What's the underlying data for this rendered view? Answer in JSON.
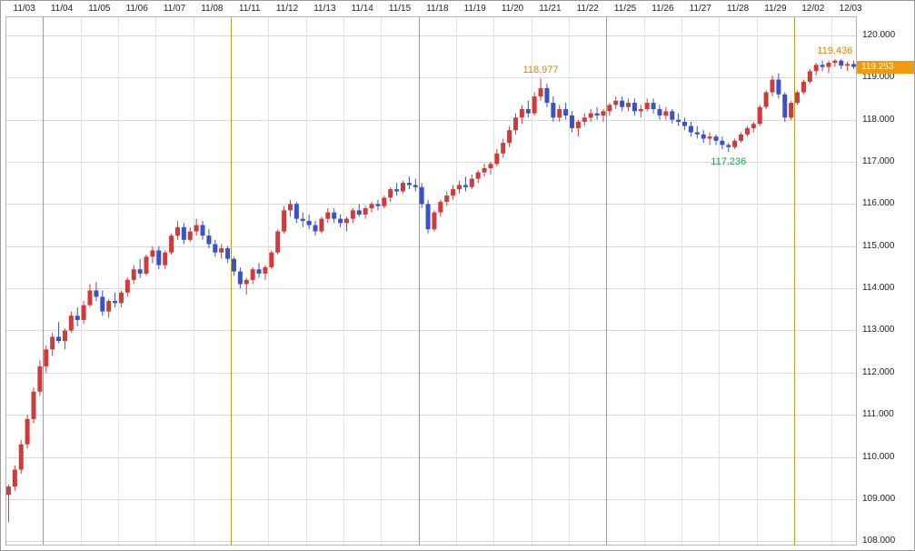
{
  "window": {
    "background": "#ffffff",
    "border_color": "#9b9b9b"
  },
  "chart_data": {
    "type": "candlestick",
    "title": "",
    "x_axis": {
      "position": "top",
      "day_labels": [
        "11/03",
        "11/04",
        "11/05",
        "11/06",
        "11/07",
        "11/08",
        "11/11",
        "11/12",
        "11/13",
        "11/14",
        "11/15",
        "11/18",
        "11/19",
        "11/20",
        "11/21",
        "11/22",
        "11/25",
        "11/26",
        "11/27",
        "11/28",
        "11/29",
        "12/02",
        "12/03"
      ],
      "candles_per_day": 6,
      "week_start_day_indices": [
        1,
        6,
        11,
        16,
        21
      ]
    },
    "y_axis": {
      "position": "right",
      "min": 107.9,
      "max": 120.45,
      "ticks": [
        {
          "value": 120,
          "label": "120.000"
        },
        {
          "value": 119,
          "label": "119.000"
        },
        {
          "value": 118,
          "label": "118.000"
        },
        {
          "value": 117,
          "label": "117.000"
        },
        {
          "value": 116,
          "label": "116.000"
        },
        {
          "value": 115,
          "label": "115.000"
        },
        {
          "value": 114,
          "label": "114.000"
        },
        {
          "value": 113,
          "label": "113.000"
        },
        {
          "value": 112,
          "label": "112.000"
        },
        {
          "value": 111,
          "label": "111.000"
        },
        {
          "value": 110,
          "label": "110.000"
        },
        {
          "value": 109,
          "label": "109.000"
        },
        {
          "value": 108,
          "label": "108.000"
        }
      ]
    },
    "colors": {
      "up": "#cf3a3a",
      "down": "#3a52c4",
      "grid_h": "#d9d9d9",
      "grid_day": "#e2e2e2",
      "grid_week": "#b3a32e",
      "axis_text": "#222222",
      "plot_border": "#b5b5b5"
    },
    "candles": [
      [
        109.1,
        109.35,
        108.45,
        109.3
      ],
      [
        109.3,
        109.8,
        109.2,
        109.7
      ],
      [
        109.7,
        110.4,
        109.6,
        110.3
      ],
      [
        110.3,
        111.0,
        110.2,
        110.9
      ],
      [
        110.9,
        111.65,
        110.8,
        111.55
      ],
      [
        111.55,
        112.3,
        111.45,
        112.15
      ],
      [
        112.15,
        112.65,
        112.0,
        112.55
      ],
      [
        112.55,
        112.95,
        112.4,
        112.85
      ],
      [
        112.85,
        113.2,
        112.7,
        112.75
      ],
      [
        112.75,
        113.05,
        112.55,
        113.0
      ],
      [
        113.0,
        113.45,
        112.95,
        113.35
      ],
      [
        113.35,
        113.55,
        113.1,
        113.25
      ],
      [
        113.25,
        113.7,
        113.15,
        113.6
      ],
      [
        113.6,
        114.1,
        113.55,
        113.95
      ],
      [
        113.95,
        114.15,
        113.7,
        113.8
      ],
      [
        113.8,
        113.95,
        113.35,
        113.45
      ],
      [
        113.45,
        113.75,
        113.3,
        113.7
      ],
      [
        113.7,
        113.9,
        113.55,
        113.65
      ],
      [
        113.65,
        113.95,
        113.55,
        113.9
      ],
      [
        113.9,
        114.25,
        113.8,
        114.2
      ],
      [
        114.2,
        114.55,
        114.1,
        114.45
      ],
      [
        114.45,
        114.7,
        114.25,
        114.35
      ],
      [
        114.35,
        114.8,
        114.3,
        114.75
      ],
      [
        114.75,
        115.0,
        114.6,
        114.9
      ],
      [
        114.9,
        115.0,
        114.45,
        114.55
      ],
      [
        114.55,
        114.9,
        114.45,
        114.85
      ],
      [
        114.85,
        115.3,
        114.8,
        115.25
      ],
      [
        115.25,
        115.6,
        115.15,
        115.45
      ],
      [
        115.45,
        115.55,
        115.05,
        115.15
      ],
      [
        115.15,
        115.45,
        115.1,
        115.35
      ],
      [
        115.35,
        115.65,
        115.25,
        115.5
      ],
      [
        115.5,
        115.6,
        115.15,
        115.25
      ],
      [
        115.25,
        115.4,
        114.95,
        115.05
      ],
      [
        115.05,
        115.15,
        114.75,
        114.85
      ],
      [
        114.85,
        115.05,
        114.7,
        114.95
      ],
      [
        114.95,
        115.0,
        114.6,
        114.7
      ],
      [
        114.7,
        114.75,
        114.3,
        114.4
      ],
      [
        114.4,
        114.5,
        114.0,
        114.1
      ],
      [
        114.1,
        114.25,
        113.85,
        114.2
      ],
      [
        114.2,
        114.5,
        114.1,
        114.45
      ],
      [
        114.45,
        114.6,
        114.25,
        114.35
      ],
      [
        114.35,
        114.55,
        114.2,
        114.5
      ],
      [
        114.5,
        114.9,
        114.45,
        114.85
      ],
      [
        114.85,
        115.4,
        114.8,
        115.35
      ],
      [
        115.35,
        115.95,
        115.3,
        115.85
      ],
      [
        115.85,
        116.1,
        115.7,
        116.0
      ],
      [
        116.0,
        116.05,
        115.55,
        115.65
      ],
      [
        115.65,
        115.8,
        115.45,
        115.6
      ],
      [
        115.6,
        115.75,
        115.4,
        115.5
      ],
      [
        115.5,
        115.6,
        115.25,
        115.35
      ],
      [
        115.35,
        115.7,
        115.3,
        115.65
      ],
      [
        115.65,
        115.9,
        115.55,
        115.8
      ],
      [
        115.8,
        115.9,
        115.55,
        115.65
      ],
      [
        115.65,
        115.75,
        115.45,
        115.55
      ],
      [
        115.55,
        115.7,
        115.35,
        115.65
      ],
      [
        115.65,
        115.9,
        115.55,
        115.85
      ],
      [
        115.85,
        116.0,
        115.7,
        115.75
      ],
      [
        115.75,
        115.95,
        115.65,
        115.9
      ],
      [
        115.9,
        116.05,
        115.8,
        116.0
      ],
      [
        116.0,
        116.1,
        115.85,
        115.95
      ],
      [
        115.95,
        116.2,
        115.9,
        116.15
      ],
      [
        116.15,
        116.4,
        116.05,
        116.35
      ],
      [
        116.35,
        116.5,
        116.2,
        116.3
      ],
      [
        116.3,
        116.55,
        116.25,
        116.5
      ],
      [
        116.5,
        116.65,
        116.35,
        116.45
      ],
      [
        116.45,
        116.6,
        116.3,
        116.4
      ],
      [
        116.4,
        116.5,
        115.9,
        116.0
      ],
      [
        116.0,
        116.1,
        115.3,
        115.4
      ],
      [
        115.4,
        115.85,
        115.35,
        115.8
      ],
      [
        115.8,
        116.1,
        115.7,
        116.05
      ],
      [
        116.05,
        116.3,
        115.95,
        116.2
      ],
      [
        116.2,
        116.45,
        116.1,
        116.35
      ],
      [
        116.35,
        116.55,
        116.25,
        116.45
      ],
      [
        116.45,
        116.65,
        116.3,
        116.4
      ],
      [
        116.4,
        116.7,
        116.35,
        116.6
      ],
      [
        116.6,
        116.8,
        116.5,
        116.75
      ],
      [
        116.75,
        116.95,
        116.65,
        116.85
      ],
      [
        116.85,
        117.0,
        116.7,
        116.95
      ],
      [
        116.95,
        117.3,
        116.9,
        117.2
      ],
      [
        117.2,
        117.55,
        117.1,
        117.45
      ],
      [
        117.45,
        117.85,
        117.35,
        117.75
      ],
      [
        117.75,
        118.15,
        117.65,
        118.05
      ],
      [
        118.05,
        118.35,
        117.9,
        118.25
      ],
      [
        118.25,
        118.45,
        118.05,
        118.15
      ],
      [
        118.15,
        118.65,
        118.1,
        118.55
      ],
      [
        118.55,
        118.98,
        118.45,
        118.75
      ],
      [
        118.75,
        118.85,
        118.3,
        118.4
      ],
      [
        118.4,
        118.55,
        117.95,
        118.05
      ],
      [
        118.05,
        118.35,
        117.95,
        118.25
      ],
      [
        118.25,
        118.4,
        118.0,
        118.1
      ],
      [
        118.1,
        118.2,
        117.7,
        117.8
      ],
      [
        117.8,
        118.0,
        117.6,
        117.95
      ],
      [
        117.95,
        118.15,
        117.85,
        118.05
      ],
      [
        118.05,
        118.25,
        117.95,
        118.15
      ],
      [
        118.15,
        118.3,
        118.0,
        118.1
      ],
      [
        118.1,
        118.25,
        117.95,
        118.2
      ],
      [
        118.2,
        118.4,
        118.1,
        118.35
      ],
      [
        118.35,
        118.55,
        118.25,
        118.45
      ],
      [
        118.45,
        118.55,
        118.2,
        118.3
      ],
      [
        118.3,
        118.5,
        118.2,
        118.4
      ],
      [
        118.4,
        118.5,
        118.1,
        118.2
      ],
      [
        118.2,
        118.35,
        118.05,
        118.25
      ],
      [
        118.25,
        118.5,
        118.2,
        118.4
      ],
      [
        118.4,
        118.5,
        118.15,
        118.25
      ],
      [
        118.25,
        118.35,
        118.0,
        118.1
      ],
      [
        118.1,
        118.3,
        118.0,
        118.2
      ],
      [
        118.2,
        118.25,
        117.9,
        118.0
      ],
      [
        118.0,
        118.15,
        117.85,
        117.95
      ],
      [
        117.95,
        118.05,
        117.75,
        117.85
      ],
      [
        117.85,
        117.95,
        117.6,
        117.7
      ],
      [
        117.7,
        117.85,
        117.55,
        117.65
      ],
      [
        117.65,
        117.75,
        117.45,
        117.55
      ],
      [
        117.55,
        117.7,
        117.4,
        117.6
      ],
      [
        117.6,
        117.65,
        117.4,
        117.5
      ],
      [
        117.5,
        117.6,
        117.3,
        117.4
      ],
      [
        117.4,
        117.45,
        117.236,
        117.35
      ],
      [
        117.35,
        117.55,
        117.3,
        117.5
      ],
      [
        117.5,
        117.7,
        117.45,
        117.65
      ],
      [
        117.65,
        117.85,
        117.6,
        117.8
      ],
      [
        117.8,
        117.95,
        117.7,
        117.9
      ],
      [
        117.9,
        118.35,
        117.85,
        118.3
      ],
      [
        118.3,
        118.7,
        118.25,
        118.65
      ],
      [
        118.65,
        119.05,
        118.55,
        118.95
      ],
      [
        118.95,
        119.1,
        118.5,
        118.6
      ],
      [
        118.6,
        118.65,
        117.95,
        118.05
      ],
      [
        118.05,
        118.45,
        118.0,
        118.4
      ],
      [
        118.4,
        118.7,
        118.35,
        118.65
      ],
      [
        118.65,
        118.95,
        118.6,
        118.9
      ],
      [
        118.9,
        119.2,
        118.85,
        119.15
      ],
      [
        119.15,
        119.35,
        119.05,
        119.3
      ],
      [
        119.3,
        119.4,
        119.15,
        119.25
      ],
      [
        119.25,
        119.4,
        119.1,
        119.35
      ],
      [
        119.35,
        119.436,
        119.25,
        119.4
      ],
      [
        119.4,
        119.43,
        119.2,
        119.28
      ],
      [
        119.28,
        119.38,
        119.15,
        119.32
      ],
      [
        119.32,
        119.4,
        119.2,
        119.253
      ]
    ],
    "annotations": [
      {
        "text": "118.977",
        "candle_index": 85,
        "placement": "above",
        "color": "#e2820a"
      },
      {
        "text": "117.236",
        "candle_index": 115,
        "placement": "below",
        "color": "#1ea34c"
      },
      {
        "text": "119.436",
        "candle_index": 132,
        "placement": "above",
        "color": "#e2820a"
      }
    ],
    "current_price": {
      "label": "119.253",
      "value": 119.253,
      "badge_bg": "#f29a0d",
      "badge_fg": "#ffffff"
    }
  }
}
